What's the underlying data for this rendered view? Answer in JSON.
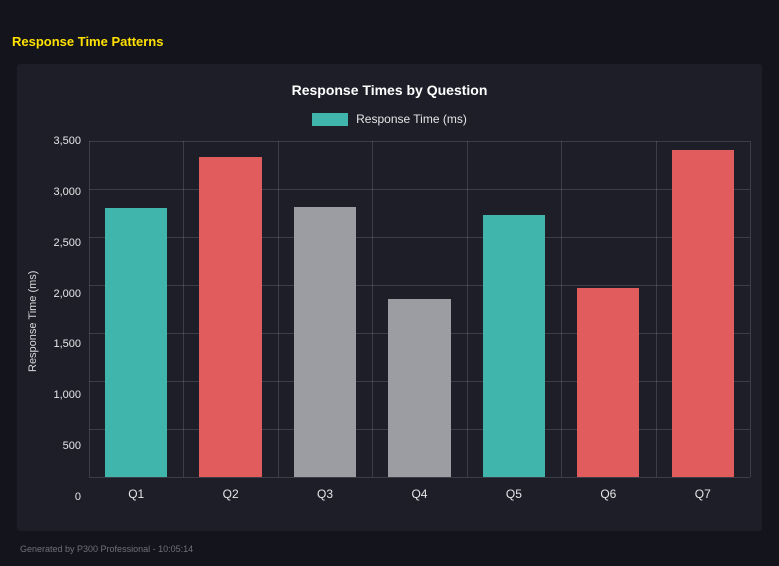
{
  "page": {
    "title": "Response Time Patterns",
    "footer": "Generated by P300 Professional - 10:05:14"
  },
  "chart": {
    "title": "Response Times by Question",
    "legend_label": "Response Time (ms)",
    "ylabel": "Response Time (ms)"
  },
  "chart_data": {
    "type": "bar",
    "title": "Response Times by Question",
    "categories": [
      "Q1",
      "Q2",
      "Q3",
      "Q4",
      "Q5",
      "Q6",
      "Q7"
    ],
    "values": [
      2800,
      3330,
      2810,
      1850,
      2730,
      1970,
      3410
    ],
    "bar_colors": [
      "#3fb5ab",
      "#e15d5d",
      "#9c9ca3",
      "#9c9ca3",
      "#3fb5ab",
      "#e15d5d",
      "#e15d5d"
    ],
    "legend": [
      {
        "label": "Response Time (ms)",
        "color": "#3fb5ab",
        "position": "top"
      }
    ],
    "xlabel": "",
    "ylabel": "Response Time (ms)",
    "ylim": [
      0,
      3500
    ],
    "ytick_step": 500,
    "ytick_labels": [
      "0",
      "500",
      "1,000",
      "1,500",
      "2,000",
      "2,500",
      "3,000",
      "3,500"
    ],
    "grid": true
  },
  "colors": {
    "background": "#14141d",
    "panel": "#1e1e29",
    "title_accent": "#ffe100",
    "teal": "#3fb5ab",
    "red": "#e15d5d",
    "gray": "#9c9ca3",
    "gridline": "rgba(255,255,255,0.14)"
  }
}
